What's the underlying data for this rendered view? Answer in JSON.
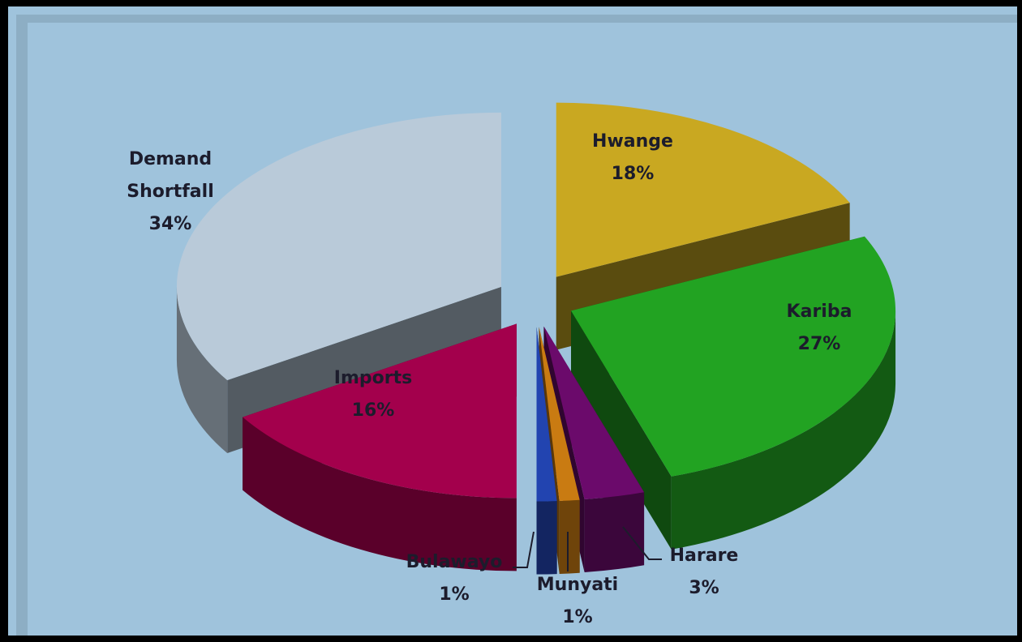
{
  "chart_data": {
    "type": "pie3d",
    "categories": [
      "Hwange",
      "Kariba",
      "Harare",
      "Munyati",
      "Bulawayo",
      "Imports",
      "Demand Shortfall"
    ],
    "values": [
      18,
      27,
      3,
      1,
      1,
      16,
      34
    ],
    "value_labels": [
      "18%",
      "27%",
      "3%",
      "1%",
      "1%",
      "16%",
      "34%"
    ],
    "colors": [
      "#c9a821",
      "#22a322",
      "#6b0a6b",
      "#c97b12",
      "#2244b0",
      "#a3004c",
      "#b9cad9"
    ]
  }
}
